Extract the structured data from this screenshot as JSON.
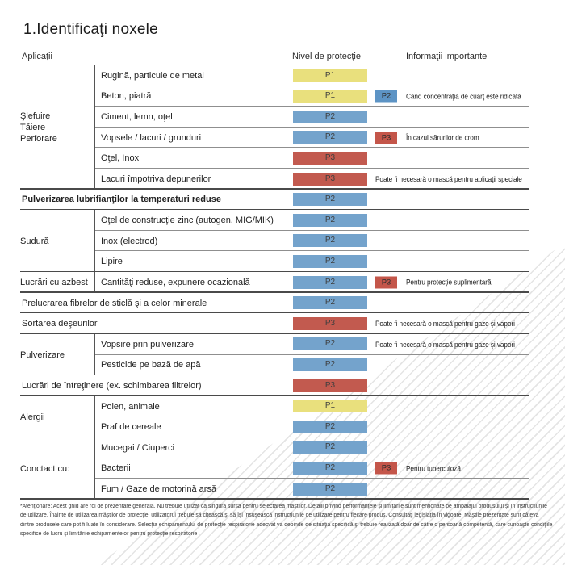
{
  "title": "1.Identificaţi noxele",
  "headers": {
    "applications": "Aplicaţii",
    "protection": "Nivel de protecţie",
    "info": "Informaţii importante"
  },
  "colors": {
    "p1_yellow": "#e9e07d",
    "p2_blue": "#74a3cc",
    "p3_red": "#c25a4f",
    "badge_p2_blue": "#5d94c5",
    "badge_p3_red": "#c4564a"
  },
  "groups": [
    {
      "label": "Şlefuire\nTăiere\nPerforare"
    },
    {
      "label": "Sudură"
    },
    {
      "label": "Lucrări cu azbest"
    },
    {
      "label": "Pulverizare"
    },
    {
      "label": "Alergii"
    },
    {
      "label": "Conctact cu:"
    }
  ],
  "rows": [
    {
      "application": "Rugină, particule de metal",
      "level": "P1"
    },
    {
      "application": "Beton, piatră",
      "level": "P1",
      "badge": "P2",
      "note": "Când concentraţia de cuarţ este ridicată"
    },
    {
      "application": "Ciment, lemn, oţel",
      "level": "P2"
    },
    {
      "application": "Vopsele / lacuri / grunduri",
      "level": "P2",
      "badge": "P3",
      "note": "În cazul sărurilor de crom"
    },
    {
      "application": "Oţel, Inox",
      "level": "P3"
    },
    {
      "application": "Lacuri împotriva depunerilor",
      "level": "P3",
      "note": "Poate fi necesară o mască pentru aplicaţii speciale"
    },
    {
      "application": "Pulverizarea lubrifianţilor la temperaturi reduse",
      "level": "P2"
    },
    {
      "application": "Oţel de construcţie zinc (autogen, MIG/MIK)",
      "level": "P2"
    },
    {
      "application": "Inox (electrod)",
      "level": "P2"
    },
    {
      "application": "Lipire",
      "level": "P2"
    },
    {
      "application": "Cantităţi reduse, expunere ocazională",
      "level": "P2",
      "badge": "P3",
      "note": "Pentru protecţie suplimentară"
    },
    {
      "application": "Prelucrarea fibrelor de sticlă şi a celor minerale",
      "level": "P2"
    },
    {
      "application": "Sortarea deşeurilor",
      "level": "P3",
      "note": "Poate fi necesară o mască pentru gaze şi vapori"
    },
    {
      "application": "Vopsire prin pulverizare",
      "level": "P2",
      "note": "Poate fi necesară o mască pentru gaze şi vapori"
    },
    {
      "application": "Pesticide pe bază de apă",
      "level": "P2"
    },
    {
      "application": "Lucrări de întreţinere (ex. schimbarea filtrelor)",
      "level": "P3"
    },
    {
      "application": "Polen, animale",
      "level": "P1"
    },
    {
      "application": "Praf de cereale",
      "level": "P2"
    },
    {
      "application": "Mucegai / Ciuperci",
      "level": "P2"
    },
    {
      "application": "Bacterii",
      "level": "P2",
      "badge": "P3",
      "note": "Pentru tuberculoză"
    },
    {
      "application": "Fum / Gaze de motorină arsă",
      "level": "P2"
    }
  ],
  "footer": {
    "lines": [
      "*Atenţionare: Acest ghid are rol de prezentare generală. Nu trebuie utilizat ca singura sursă pentru selectarea măştilor. Detalii privind performanţele şi limitările sunt menţionate pe ambalajul produsului şi în instrucţiunile",
      "de utilizare. Înainte de utilizarea măştilor de protecţie, utilizatorul trebuie să citească şi să îşi însuşească instrucţiunile de utilizare pentru fiecare produs. Consultaţi legislaţia în vigoare. Măştile prezentate sunt câteva",
      "dintre produsele care pot fi luate în considerare. Selecţia echipamentului de protecţie respiratorie adecvat va depinde de situaţia specifică şi trebuie realizată doar de către o persoană competentă, care cunoaşte condiţiile",
      "specifice de lucru şi limitările echipamentelor pentru protecţie respiratorie"
    ]
  }
}
